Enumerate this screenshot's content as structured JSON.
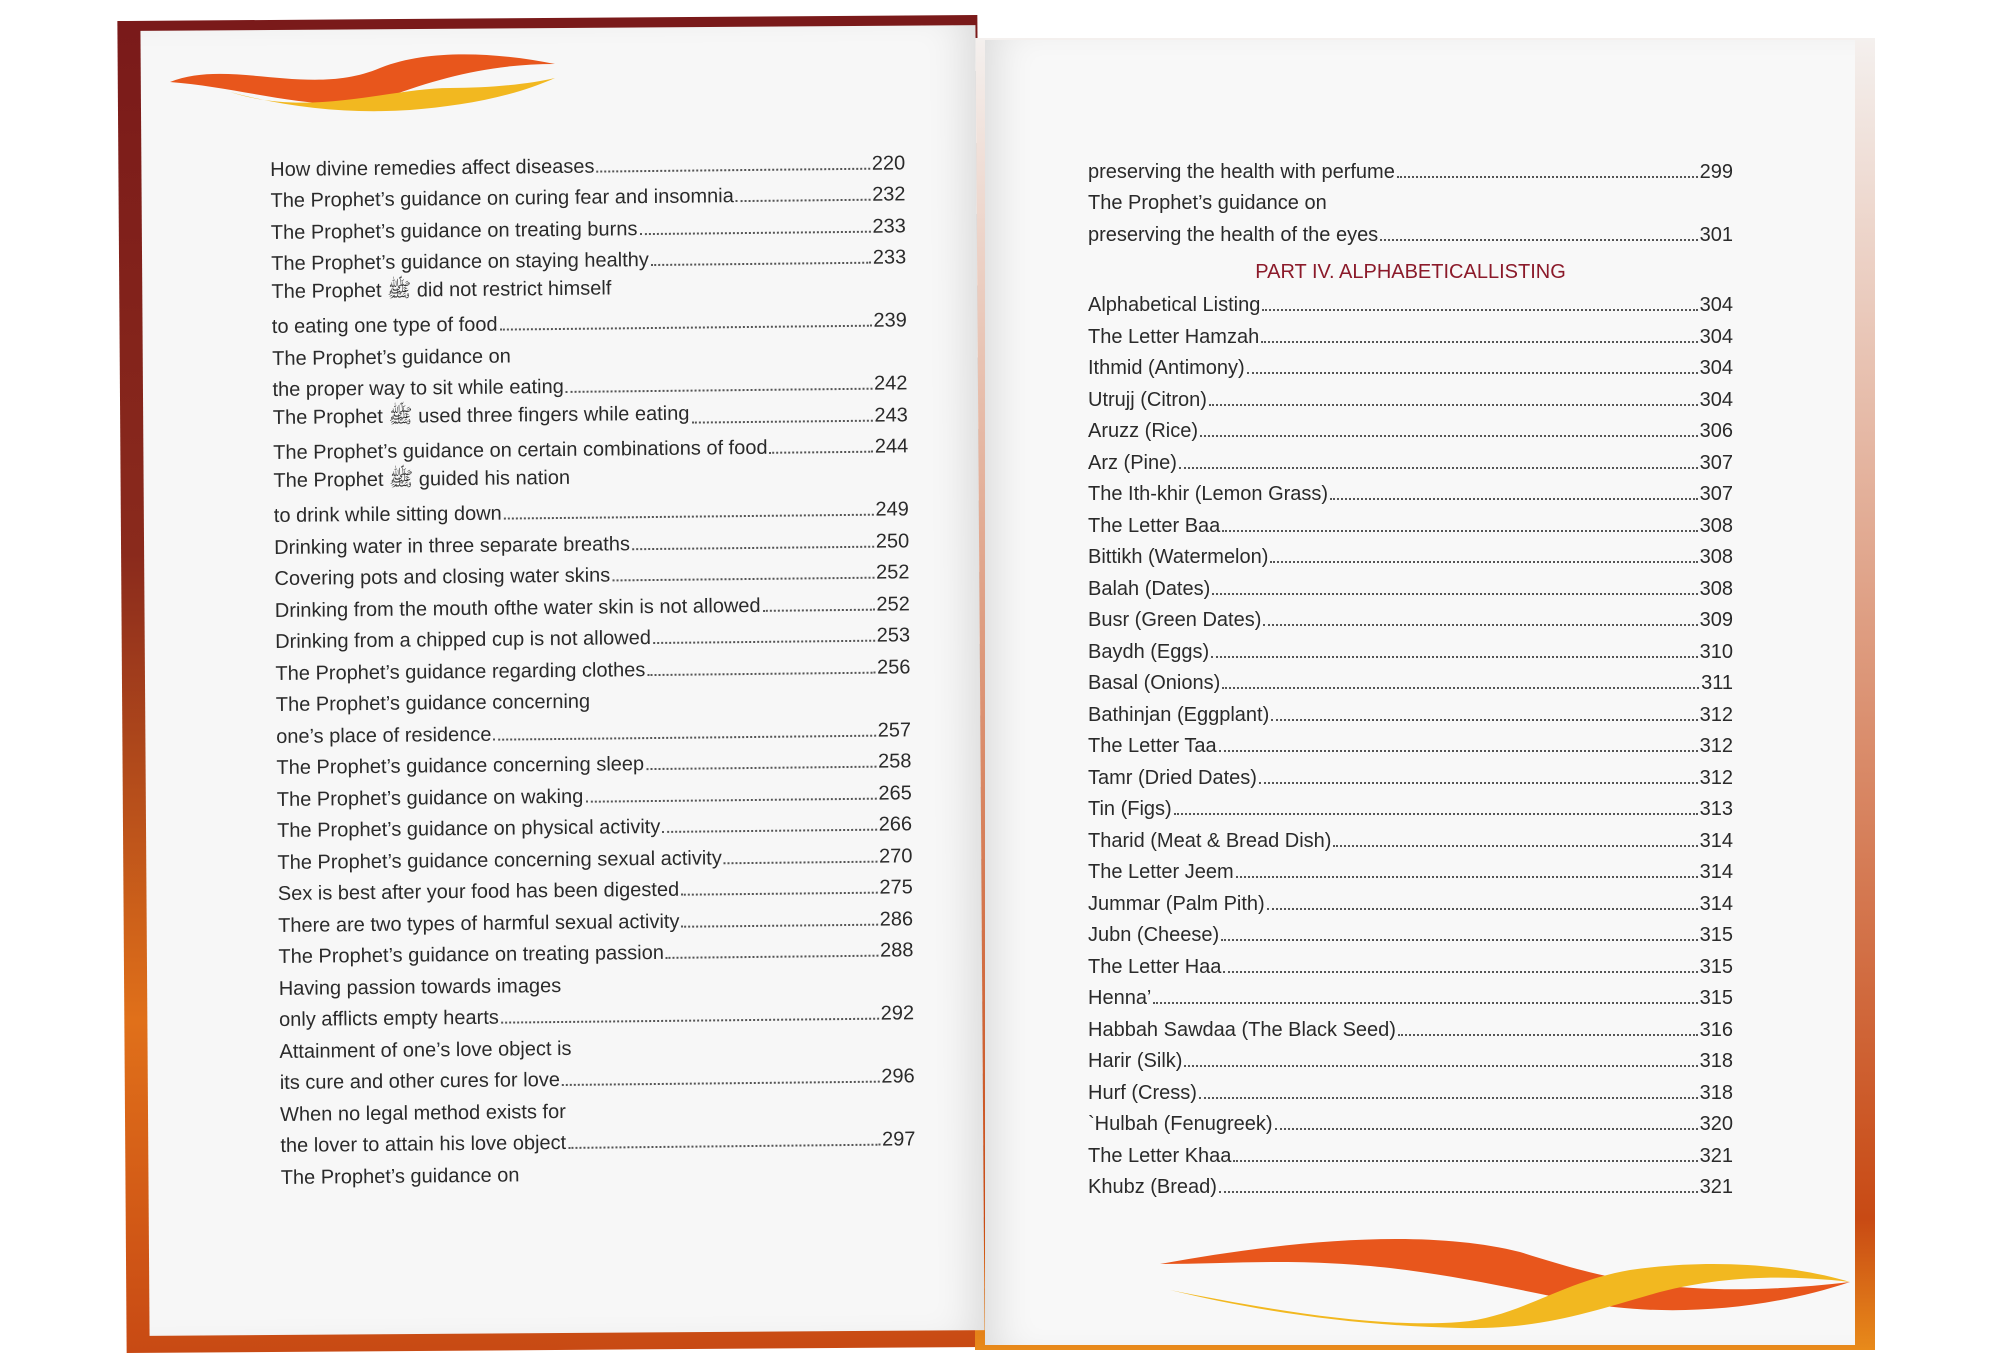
{
  "left_page": {
    "entries": [
      {
        "title": "How divine remedies affect diseases",
        "page": "220"
      },
      {
        "title": "The Prophet’s guidance on curing fear and insomnia",
        "page": "232"
      },
      {
        "title": "The Prophet’s guidance on treating burns",
        "page": "233"
      },
      {
        "title": "The Prophet’s guidance on staying healthy",
        "page": "233"
      },
      {
        "title": "The Prophet ﷺ did not restrict himself",
        "page": ""
      },
      {
        "title": "to eating one type of food",
        "page": "239"
      },
      {
        "title": "The Prophet’s guidance on",
        "page": ""
      },
      {
        "title": "the proper way to sit while eating",
        "page": "242"
      },
      {
        "title": "The Prophet ﷺ used three fingers while eating",
        "page": "243"
      },
      {
        "title": "The Prophet’s guidance on certain combinations of food",
        "page": "244"
      },
      {
        "title": "The Prophet ﷺ guided his nation",
        "page": ""
      },
      {
        "title": "to drink while sitting down",
        "page": "249"
      },
      {
        "title": "Drinking water in three separate breaths",
        "page": "250"
      },
      {
        "title": "Covering pots and closing water skins",
        "page": "252"
      },
      {
        "title": "Drinking from the mouth ofthe water skin is not allowed",
        "page": "252"
      },
      {
        "title": "Drinking from a chipped cup is not allowed",
        "page": "253"
      },
      {
        "title": "The Prophet’s guidance regarding clothes",
        "page": "256"
      },
      {
        "title": "The Prophet’s guidance concerning",
        "page": ""
      },
      {
        "title": "one’s place of residence",
        "page": "257"
      },
      {
        "title": "The Prophet’s guidance concerning sleep",
        "page": "258"
      },
      {
        "title": "The Prophet’s guidance on waking",
        "page": "265"
      },
      {
        "title": "The Prophet’s guidance on physical activity",
        "page": "266"
      },
      {
        "title": "The Prophet’s guidance concerning sexual activity",
        "page": "270"
      },
      {
        "title": "Sex is best after your food has been digested",
        "page": "275"
      },
      {
        "title": "There are two types of harmful sexual activity",
        "page": "286"
      },
      {
        "title": "The Prophet’s guidance on treating passion",
        "page": "288"
      },
      {
        "title": "Having passion towards images",
        "page": ""
      },
      {
        "title": "only afflicts empty hearts",
        "page": "292"
      },
      {
        "title": "Attainment of one’s love object is",
        "page": ""
      },
      {
        "title": "its cure and other cures for love",
        "page": "296"
      },
      {
        "title": "When no legal method exists for",
        "page": ""
      },
      {
        "title": "the lover to attain his love object",
        "page": "297"
      },
      {
        "title": "The Prophet’s guidance on",
        "page": ""
      }
    ]
  },
  "right_page": {
    "entries_before": [
      {
        "title": "preserving the health with perfume",
        "page": "299"
      },
      {
        "title": "The Prophet’s guidance on",
        "page": ""
      },
      {
        "title": "preserving the health of the eyes",
        "page": "301"
      }
    ],
    "heading": "PART IV. ALPHABETICALLISTING",
    "entries": [
      {
        "title": "Alphabetical Listing",
        "page": "304"
      },
      {
        "title": "The Letter Hamzah",
        "page": "304"
      },
      {
        "title": "Ithmid (Antimony)",
        "page": "304"
      },
      {
        "title": "Utrujj (Citron)",
        "page": "304"
      },
      {
        "title": "Aruzz (Rice)",
        "page": "306"
      },
      {
        "title": "Arz (Pine)",
        "page": "307"
      },
      {
        "title": "The Ith-khir (Lemon Grass)",
        "page": "307"
      },
      {
        "title": "The Letter Baa",
        "page": "308"
      },
      {
        "title": "Bittikh (Watermelon)",
        "page": "308"
      },
      {
        "title": "Balah (Dates)",
        "page": "308"
      },
      {
        "title": "Busr (Green Dates)",
        "page": "309"
      },
      {
        "title": "Baydh (Eggs)",
        "page": "310"
      },
      {
        "title": "Basal (Onions)",
        "page": "311"
      },
      {
        "title": "Bathinjan (Eggplant)",
        "page": "312"
      },
      {
        "title": "The Letter Taa",
        "page": "312"
      },
      {
        "title": "Tamr (Dried Dates)",
        "page": "312"
      },
      {
        "title": "Tin (Figs)",
        "page": "313"
      },
      {
        "title": "Tharid (Meat & Bread Dish)",
        "page": "314"
      },
      {
        "title": "The Letter Jeem",
        "page": "314"
      },
      {
        "title": "Jummar (Palm Pith)",
        "page": "314"
      },
      {
        "title": "Jubn (Cheese)",
        "page": "315"
      },
      {
        "title": "The Letter Haa",
        "page": "315"
      },
      {
        "title": "Henna’",
        "page": "315"
      },
      {
        "title": "Habbah Sawdaa (The Black Seed)",
        "page": "316"
      },
      {
        "title": "Harir (Silk)",
        "page": "318"
      },
      {
        "title": "Hurf (Cress)",
        "page": "318"
      },
      {
        "title": "`Hulbah (Fenugreek)",
        "page": "320"
      },
      {
        "title": "The Letter Khaa",
        "page": "321"
      },
      {
        "title": "Khubz (Bread)",
        "page": "321"
      }
    ]
  },
  "colors": {
    "heading": "#8b1a2a",
    "flame_orange": "#e8561c",
    "flame_yellow": "#f2b820",
    "cover": "#7a1a1a"
  }
}
